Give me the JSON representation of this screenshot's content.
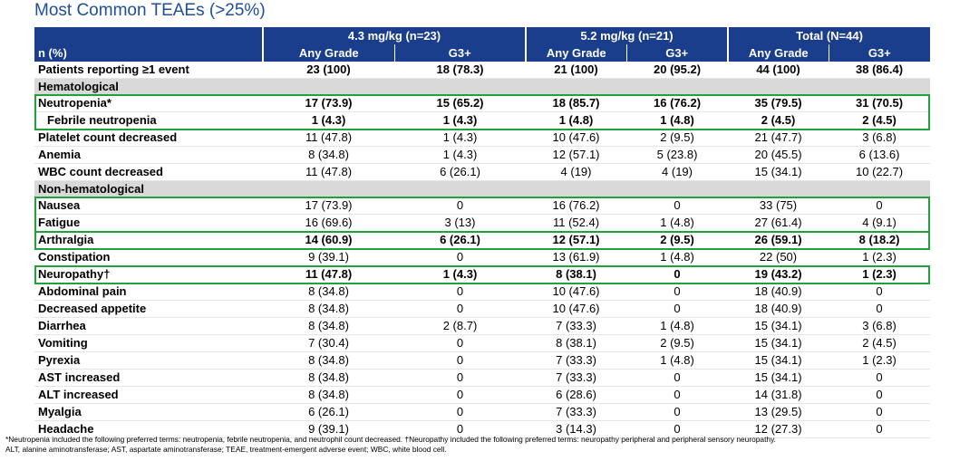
{
  "title": "Most Common TEAEs (>25%)",
  "header": {
    "groups": [
      "4.3 mg/kg (n=23)",
      "5.2 mg/kg (n=21)",
      "Total (N=44)"
    ],
    "row_label": "n (%)",
    "sub": [
      "Any Grade",
      "G3+",
      "Any Grade",
      "G3+",
      "Any Grade",
      "G3+"
    ]
  },
  "rows": [
    {
      "type": "data",
      "bold": true,
      "label": "Patients reporting ≥1 event",
      "cells": [
        "23 (100)",
        "18 (78.3)",
        "21 (100)",
        "20 (95.2)",
        "44 (100)",
        "38 (86.4)"
      ]
    },
    {
      "type": "section",
      "label": "Hematological"
    },
    {
      "type": "data",
      "bold": true,
      "label": "Neutropenia*",
      "cells": [
        "17 (73.9)",
        "15 (65.2)",
        "18 (85.7)",
        "16 (76.2)",
        "35 (79.5)",
        "31 (70.5)"
      ]
    },
    {
      "type": "data",
      "bold": true,
      "indent": true,
      "label": "Febrile neutropenia",
      "cells": [
        "1 (4.3)",
        "1 (4.3)",
        "1 (4.8)",
        "1 (4.8)",
        "2 (4.5)",
        "2 (4.5)"
      ]
    },
    {
      "type": "data",
      "label": "Platelet count decreased",
      "cells": [
        "11 (47.8)",
        "1 (4.3)",
        "10 (47.6)",
        "2 (9.5)",
        "21 (47.7)",
        "3 (6.8)"
      ]
    },
    {
      "type": "data",
      "label": "Anemia",
      "cells": [
        "8 (34.8)",
        "1 (4.3)",
        "12 (57.1)",
        "5 (23.8)",
        "20 (45.5)",
        "6 (13.6)"
      ]
    },
    {
      "type": "data",
      "label": "WBC count decreased",
      "cells": [
        "11 (47.8)",
        "6 (26.1)",
        "4 (19)",
        "4 (19)",
        "15 (34.1)",
        "10 (22.7)"
      ]
    },
    {
      "type": "section",
      "label": "Non-hematological"
    },
    {
      "type": "data",
      "label": "Nausea",
      "cells": [
        "17 (73.9)",
        "0",
        "16 (76.2)",
        "0",
        "33 (75)",
        "0"
      ]
    },
    {
      "type": "data",
      "label": "Fatigue",
      "cells": [
        "16 (69.6)",
        "3 (13)",
        "11 (52.4)",
        "1 (4.8)",
        "27 (61.4)",
        "4 (9.1)"
      ]
    },
    {
      "type": "data",
      "bold": true,
      "label": "Arthralgia",
      "cells": [
        "14 (60.9)",
        "6 (26.1)",
        "12 (57.1)",
        "2 (9.5)",
        "26 (59.1)",
        "8 (18.2)"
      ]
    },
    {
      "type": "data",
      "label": "Constipation",
      "cells": [
        "9 (39.1)",
        "0",
        "13 (61.9)",
        "1 (4.8)",
        "22 (50)",
        "1 (2.3)"
      ]
    },
    {
      "type": "data",
      "bold": true,
      "label": "Neuropathy†",
      "cells": [
        "11 (47.8)",
        "1 (4.3)",
        "8 (38.1)",
        "0",
        "19 (43.2)",
        "1 (2.3)"
      ]
    },
    {
      "type": "data",
      "label": "Abdominal pain",
      "cells": [
        "8 (34.8)",
        "0",
        "10 (47.6)",
        "0",
        "18 (40.9)",
        "0"
      ]
    },
    {
      "type": "data",
      "label": "Decreased appetite",
      "cells": [
        "8 (34.8)",
        "0",
        "10 (47.6)",
        "0",
        "18 (40.9)",
        "0"
      ]
    },
    {
      "type": "data",
      "label": "Diarrhea",
      "cells": [
        "8 (34.8)",
        "2 (8.7)",
        "7 (33.3)",
        "1 (4.8)",
        "15 (34.1)",
        "3 (6.8)"
      ]
    },
    {
      "type": "data",
      "label": "Vomiting",
      "cells": [
        "7 (30.4)",
        "0",
        "8 (38.1)",
        "2 (9.5)",
        "15 (34.1)",
        "2 (4.5)"
      ]
    },
    {
      "type": "data",
      "label": "Pyrexia",
      "cells": [
        "8 (34.8)",
        "0",
        "7 (33.3)",
        "1 (4.8)",
        "15 (34.1)",
        "1 (2.3)"
      ]
    },
    {
      "type": "data",
      "label": "AST increased",
      "cells": [
        "8 (34.8)",
        "0",
        "7 (33.3)",
        "0",
        "15 (34.1)",
        "0"
      ]
    },
    {
      "type": "data",
      "label": "ALT increased",
      "cells": [
        "8 (34.8)",
        "0",
        "6 (28.6)",
        "0",
        "14 (31.8)",
        "0"
      ]
    },
    {
      "type": "data",
      "label": "Myalgia",
      "cells": [
        "6 (26.1)",
        "0",
        "7 (33.3)",
        "0",
        "13 (29.5)",
        "0"
      ]
    },
    {
      "type": "data",
      "label": "Headache",
      "cells": [
        "9 (39.1)",
        "0",
        "3 (14.3)",
        "0",
        "12 (27.3)",
        "0"
      ]
    }
  ],
  "highlight_color": "#22a03c",
  "header_color": "#1a3e8c",
  "footnote": {
    "line1": "*Neutropenia included the following preferred terms: neutropenia, febrile neutropenia, and neutrophil count decreased. †Neuropathy included the following preferred terms: neuropathy peripheral and peripheral sensory neuropathy.",
    "line2": "ALT, alanine aminotransferase; AST, aspartate aminotransferase; TEAE, treatment-emergent adverse event; WBC, white blood cell."
  }
}
